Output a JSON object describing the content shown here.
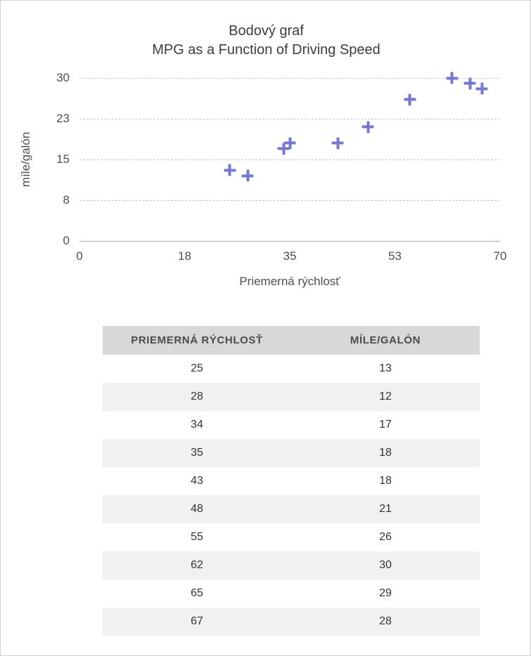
{
  "chart": {
    "title_line1": "Bodový graf",
    "title_line2": "MPG as a Function of Driving Speed"
  },
  "chart_data": {
    "type": "scatter",
    "title": "Bodový graf — MPG as a Function of Driving Speed",
    "xlabel": "Priemerná rýchlosť",
    "ylabel": "míle/galón",
    "x": [
      25,
      28,
      34,
      35,
      43,
      48,
      55,
      62,
      65,
      67
    ],
    "y": [
      13,
      12,
      17,
      18,
      18,
      21,
      26,
      30,
      29,
      28
    ],
    "xlim": [
      0,
      70
    ],
    "ylim": [
      0,
      30
    ],
    "x_ticks": [
      "0",
      "18",
      "35",
      "53",
      "70"
    ],
    "y_ticks": [
      "0",
      "8",
      "15",
      "23",
      "30"
    ],
    "grid": "horizontal-dashed",
    "legend": "none",
    "marker": "plus",
    "marker_color": "#7578d1"
  },
  "table": {
    "headers": [
      "PRIEMERNÁ RÝCHLOSŤ",
      "MÍLE/GALÓN"
    ],
    "rows": [
      [
        "25",
        "13"
      ],
      [
        "28",
        "12"
      ],
      [
        "34",
        "17"
      ],
      [
        "35",
        "18"
      ],
      [
        "43",
        "18"
      ],
      [
        "48",
        "21"
      ],
      [
        "55",
        "26"
      ],
      [
        "62",
        "30"
      ],
      [
        "65",
        "29"
      ],
      [
        "67",
        "28"
      ]
    ]
  }
}
